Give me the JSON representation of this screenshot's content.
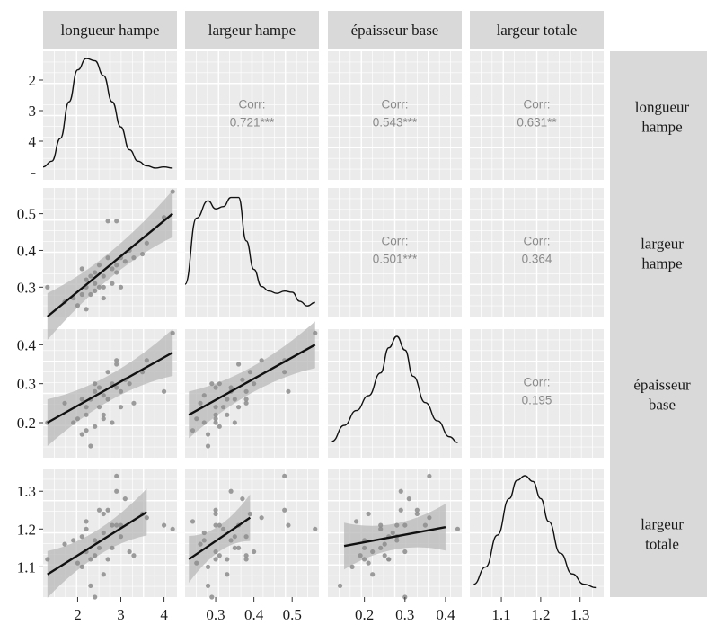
{
  "chart_data": {
    "type": "scatter-matrix",
    "variables": [
      "longueur hampe",
      "largeur hampe",
      "épaisseur base",
      "largeur totale"
    ],
    "row_labels": [
      [
        "longueur",
        "hampe"
      ],
      [
        "largeur",
        "hampe"
      ],
      [
        "épaisseur",
        "base"
      ],
      [
        "largeur",
        "totale"
      ]
    ],
    "ranges": [
      [
        1.2,
        4.3
      ],
      [
        0.22,
        0.57
      ],
      [
        0.11,
        0.44
      ],
      [
        1.02,
        1.36
      ]
    ],
    "x_ticks": [
      [
        2,
        3,
        4
      ],
      [
        0.3,
        0.4,
        0.5
      ],
      [
        0.2,
        0.3,
        0.4
      ],
      [
        1.1,
        1.2,
        1.3
      ]
    ],
    "x_tick_labels": [
      [
        "2",
        "3",
        "4"
      ],
      [
        "0.3",
        "0.4",
        "0.5"
      ],
      [
        "0.2",
        "0.3",
        "0.4"
      ],
      [
        "1.1",
        "1.2",
        "1.3"
      ]
    ],
    "y_ticks": [
      [
        2,
        3,
        4
      ],
      [
        0.3,
        0.4,
        0.5
      ],
      [
        0.2,
        0.3,
        0.4
      ],
      [
        1.1,
        1.2,
        1.3
      ]
    ],
    "y_tick_labels": [
      [
        "2",
        "3",
        "4"
      ],
      [
        "0.3",
        "0.4",
        "0.5"
      ],
      [
        "0.2",
        "0.3",
        "0.4"
      ],
      [
        "1.1",
        "1.2",
        "1.3"
      ]
    ],
    "first_row_extra_tick": "-",
    "correlations": [
      {
        "row": 0,
        "col": 1,
        "label": "Corr:",
        "value": "0.721***"
      },
      {
        "row": 0,
        "col": 2,
        "label": "Corr:",
        "value": "0.543***"
      },
      {
        "row": 0,
        "col": 3,
        "label": "Corr:",
        "value": "0.631**"
      },
      {
        "row": 1,
        "col": 2,
        "label": "Corr:",
        "value": "0.501***"
      },
      {
        "row": 1,
        "col": 3,
        "label": "Corr:",
        "value": "0.364"
      },
      {
        "row": 2,
        "col": 3,
        "label": "Corr:",
        "value": "0.195"
      }
    ],
    "densities": [
      {
        "x": [
          1.2,
          1.4,
          1.6,
          1.8,
          2.0,
          2.2,
          2.4,
          2.6,
          2.8,
          3.0,
          3.2,
          3.4,
          3.6,
          3.8,
          4.0,
          4.2
        ],
        "y": [
          0.05,
          0.1,
          0.3,
          0.62,
          0.9,
          1.0,
          0.98,
          0.85,
          0.62,
          0.4,
          0.2,
          0.1,
          0.06,
          0.04,
          0.05,
          0.04
        ]
      },
      {
        "x": [
          0.22,
          0.25,
          0.28,
          0.3,
          0.32,
          0.34,
          0.36,
          0.38,
          0.4,
          0.42,
          0.44,
          0.46,
          0.48,
          0.5,
          0.52,
          0.54,
          0.56
        ],
        "y": [
          0.22,
          0.8,
          0.95,
          0.88,
          0.9,
          0.98,
          0.98,
          0.6,
          0.35,
          0.2,
          0.16,
          0.14,
          0.16,
          0.15,
          0.07,
          0.03,
          0.06
        ]
      },
      {
        "x": [
          0.12,
          0.15,
          0.18,
          0.21,
          0.24,
          0.26,
          0.28,
          0.3,
          0.32,
          0.35,
          0.38,
          0.41,
          0.43
        ],
        "y": [
          0.08,
          0.22,
          0.35,
          0.48,
          0.68,
          0.9,
          1.0,
          0.88,
          0.65,
          0.42,
          0.26,
          0.12,
          0.07
        ]
      },
      {
        "x": [
          1.03,
          1.06,
          1.09,
          1.12,
          1.14,
          1.16,
          1.18,
          1.2,
          1.22,
          1.25,
          1.28,
          1.31,
          1.34
        ],
        "y": [
          0.05,
          0.2,
          0.48,
          0.8,
          0.96,
          1.0,
          0.95,
          0.8,
          0.6,
          0.32,
          0.14,
          0.05,
          0.02
        ]
      }
    ],
    "points": [
      {
        "lh": 1.3,
        "wh": 0.3,
        "eb": 0.2,
        "lt": 1.12
      },
      {
        "lh": 1.7,
        "wh": 0.26,
        "eb": 0.25,
        "lt": 1.16
      },
      {
        "lh": 1.9,
        "wh": 0.27,
        "eb": 0.2,
        "lt": 1.17
      },
      {
        "lh": 2.0,
        "wh": 0.25,
        "eb": 0.21,
        "lt": 1.11
      },
      {
        "lh": 2.1,
        "wh": 0.35,
        "eb": 0.26,
        "lt": 1.18
      },
      {
        "lh": 2.1,
        "wh": 0.28,
        "eb": 0.17,
        "lt": 1.1
      },
      {
        "lh": 2.2,
        "wh": 0.3,
        "eb": 0.22,
        "lt": 1.14
      },
      {
        "lh": 2.2,
        "wh": 0.32,
        "eb": 0.24,
        "lt": 1.2
      },
      {
        "lh": 2.3,
        "wh": 0.33,
        "eb": 0.26,
        "lt": 1.12
      },
      {
        "lh": 2.3,
        "wh": 0.28,
        "eb": 0.14,
        "lt": 1.05
      },
      {
        "lh": 2.4,
        "wh": 0.34,
        "eb": 0.28,
        "lt": 1.17
      },
      {
        "lh": 2.4,
        "wh": 0.31,
        "eb": 0.19,
        "lt": 1.13
      },
      {
        "lh": 2.4,
        "wh": 0.29,
        "eb": 0.3,
        "lt": 1.02
      },
      {
        "lh": 2.5,
        "wh": 0.36,
        "eb": 0.24,
        "lt": 1.15
      },
      {
        "lh": 2.5,
        "wh": 0.3,
        "eb": 0.29,
        "lt": 1.25
      },
      {
        "lh": 2.6,
        "wh": 0.33,
        "eb": 0.22,
        "lt": 1.08
      },
      {
        "lh": 2.6,
        "wh": 0.27,
        "eb": 0.27,
        "lt": 1.19
      },
      {
        "lh": 2.7,
        "wh": 0.38,
        "eb": 0.26,
        "lt": 1.12
      },
      {
        "lh": 2.7,
        "wh": 0.48,
        "eb": 0.33,
        "lt": 1.25
      },
      {
        "lh": 2.8,
        "wh": 0.35,
        "eb": 0.2,
        "lt": 1.15
      },
      {
        "lh": 2.8,
        "wh": 0.31,
        "eb": 0.3,
        "lt": 1.21
      },
      {
        "lh": 2.9,
        "wh": 0.48,
        "eb": 0.36,
        "lt": 1.34
      },
      {
        "lh": 2.9,
        "wh": 0.36,
        "eb": 0.35,
        "lt": 1.21
      },
      {
        "lh": 3.0,
        "wh": 0.38,
        "eb": 0.28,
        "lt": 1.18
      },
      {
        "lh": 3.0,
        "wh": 0.3,
        "eb": 0.24,
        "lt": 1.21
      },
      {
        "lh": 3.1,
        "wh": 0.37,
        "eb": 0.31,
        "lt": 1.28
      },
      {
        "lh": 3.2,
        "wh": 0.4,
        "eb": 0.3,
        "lt": 1.14
      },
      {
        "lh": 3.3,
        "wh": 0.38,
        "eb": 0.25,
        "lt": 1.13
      },
      {
        "lh": 3.5,
        "wh": 0.39,
        "eb": 0.33,
        "lt": 1.24
      },
      {
        "lh": 3.6,
        "wh": 0.42,
        "eb": 0.36,
        "lt": 1.23
      },
      {
        "lh": 4.0,
        "wh": 0.49,
        "eb": 0.28,
        "lt": 1.21
      },
      {
        "lh": 4.2,
        "wh": 0.56,
        "eb": 0.43,
        "lt": 1.2
      },
      {
        "lh": 2.2,
        "wh": 0.24,
        "eb": 0.18,
        "lt": 1.22
      },
      {
        "lh": 2.6,
        "wh": 0.3,
        "eb": 0.21,
        "lt": 1.24
      },
      {
        "lh": 2.9,
        "wh": 0.34,
        "eb": 0.29,
        "lt": 1.3
      }
    ],
    "fits": [
      {
        "row": 1,
        "col": 0,
        "x": [
          1.3,
          4.2
        ],
        "y": [
          0.22,
          0.5
        ]
      },
      {
        "row": 2,
        "col": 0,
        "x": [
          1.3,
          4.2
        ],
        "y": [
          0.2,
          0.38
        ]
      },
      {
        "row": 2,
        "col": 1,
        "x": [
          0.23,
          0.56
        ],
        "y": [
          0.22,
          0.4
        ]
      },
      {
        "row": 3,
        "col": 0,
        "x": [
          1.3,
          3.6
        ],
        "y": [
          1.08,
          1.245
        ]
      },
      {
        "row": 3,
        "col": 1,
        "x": [
          0.23,
          0.39
        ],
        "y": [
          1.12,
          1.23
        ]
      },
      {
        "row": 3,
        "col": 2,
        "x": [
          0.15,
          0.4
        ],
        "y": [
          1.155,
          1.205
        ]
      }
    ],
    "colors": {
      "panel_bg": "#ebebeb",
      "grid": "#ffffff",
      "strip_bg": "#d9d9d9",
      "point": "#8c8c8c",
      "line": "#111111",
      "band": "#b8b8b8",
      "corr_text": "#8a8a8a"
    }
  }
}
